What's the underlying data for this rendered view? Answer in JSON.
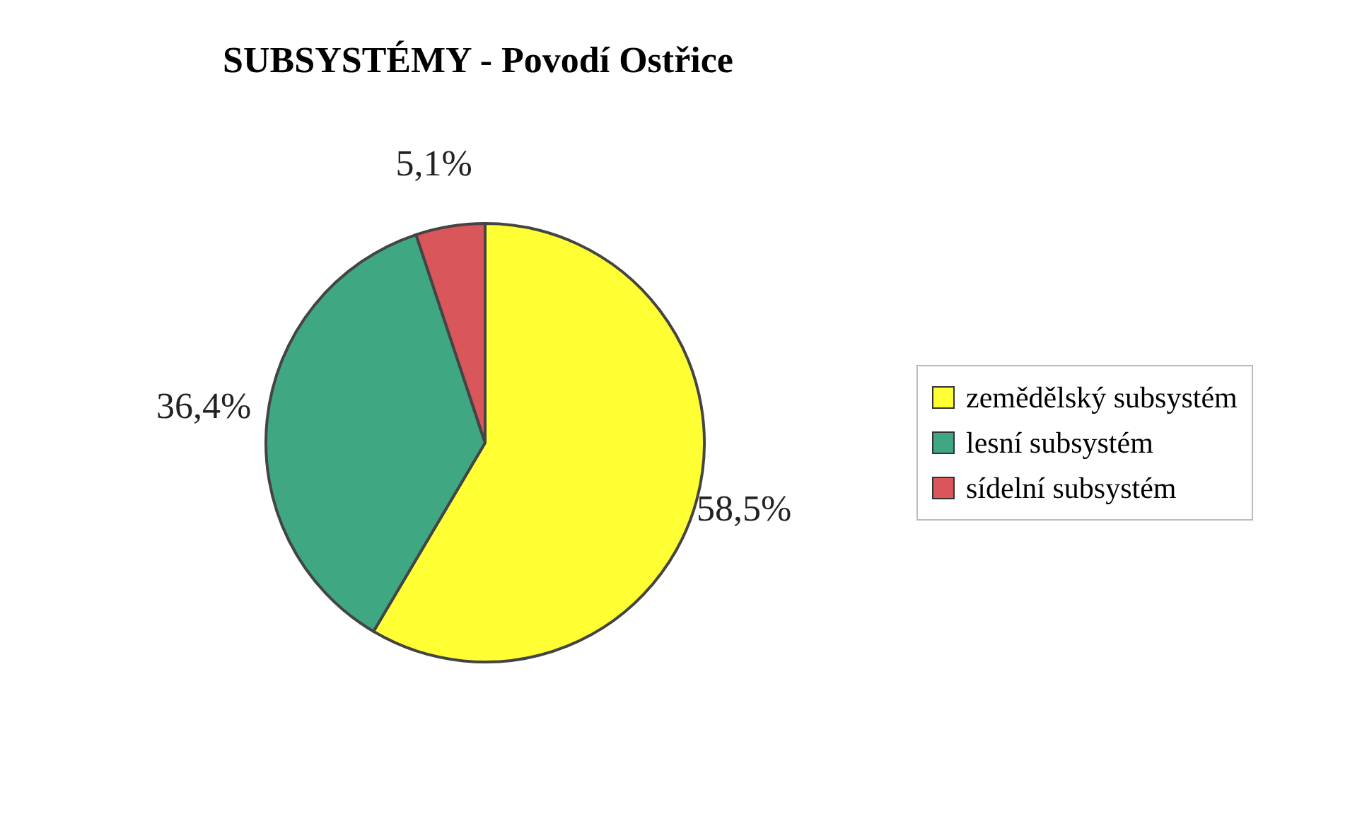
{
  "chart_data": {
    "type": "pie",
    "title": "SUBSYSTÉMY - Povodí Ostřice",
    "categories": [
      "zemědělský subsystém",
      "lesní subsystém",
      "sídelní subsystém"
    ],
    "values": [
      58.5,
      36.4,
      5.1
    ],
    "value_labels": [
      "58,5%",
      "36,4%",
      "5,1%"
    ],
    "colors": [
      "#ffff33",
      "#3fa882",
      "#d9575a"
    ],
    "legend": "right"
  }
}
